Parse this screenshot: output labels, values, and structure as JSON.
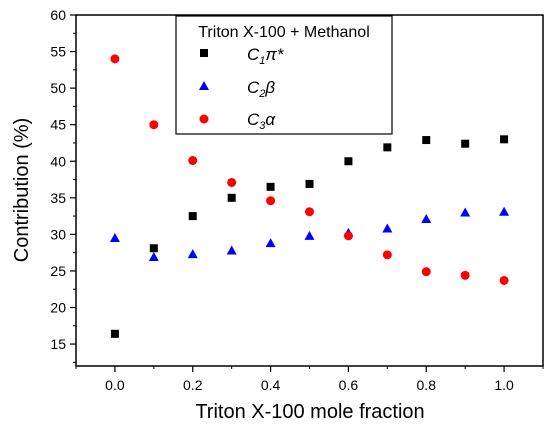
{
  "chart_data": {
    "type": "scatter",
    "xlabel": "Triton X-100 mole fraction",
    "ylabel": "Contribution (%)",
    "xlim": [
      -0.1,
      1.1
    ],
    "ylim": [
      12,
      60
    ],
    "xticks": [
      0.0,
      0.2,
      0.4,
      0.6,
      0.8,
      1.0
    ],
    "xtick_labels": [
      "0.0",
      "0.2",
      "0.4",
      "0.6",
      "0.8",
      "1.0"
    ],
    "yticks": [
      15,
      20,
      25,
      30,
      35,
      40,
      45,
      50,
      55,
      60
    ],
    "ytick_labels": [
      "15",
      "20",
      "25",
      "30",
      "35",
      "40",
      "45",
      "50",
      "55",
      "60"
    ],
    "grid": false,
    "legend_title": "Triton X-100 + Methanol",
    "legend_position": "top-center",
    "x": [
      0.0,
      0.1,
      0.2,
      0.3,
      0.4,
      0.5,
      0.6,
      0.7,
      0.8,
      0.9,
      1.0
    ],
    "series": [
      {
        "name": "C1π*",
        "label_main": "C",
        "label_sub": "1",
        "label_sym": "π*",
        "marker": "square",
        "color": "#000000",
        "values": [
          16.4,
          28.1,
          32.5,
          35.0,
          36.5,
          36.9,
          40.0,
          41.9,
          42.9,
          42.4,
          43.0
        ]
      },
      {
        "name": "C2β",
        "label_main": "C",
        "label_sub": "2",
        "label_sym": "β",
        "marker": "triangle",
        "color": "#0000ff",
        "values": [
          29.5,
          26.9,
          27.3,
          27.8,
          28.8,
          29.8,
          30.2,
          30.8,
          32.1,
          33.0,
          33.1
        ]
      },
      {
        "name": "C3α",
        "label_main": "C",
        "label_sub": "3",
        "label_sym": "α",
        "marker": "circle",
        "color": "#ff0000",
        "values": [
          54.0,
          45.0,
          40.1,
          37.1,
          34.6,
          33.1,
          29.8,
          27.2,
          24.9,
          24.4,
          23.7
        ]
      }
    ]
  }
}
